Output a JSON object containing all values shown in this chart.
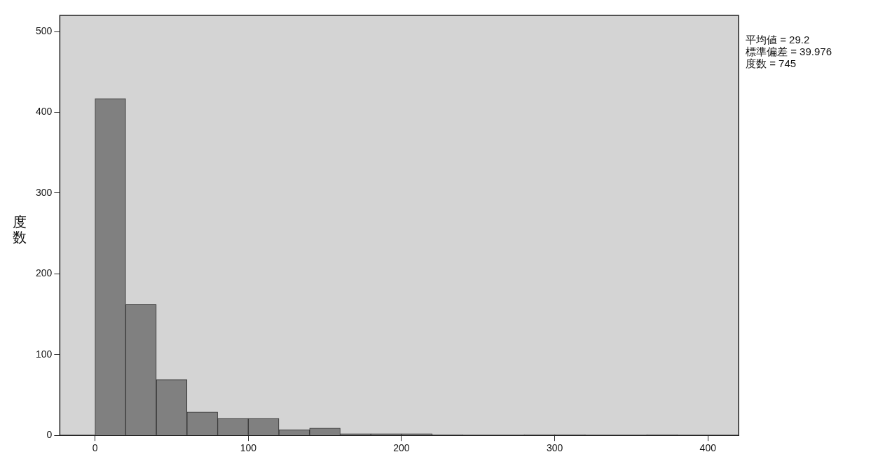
{
  "chart_data": {
    "type": "histogram",
    "ylabel": "度数",
    "bins": [
      0,
      20,
      40,
      60,
      80,
      100,
      120,
      140,
      160,
      180,
      200,
      220,
      240,
      260,
      280,
      300,
      320,
      340,
      360,
      380,
      400
    ],
    "values": [
      417,
      162,
      69,
      29,
      21,
      21,
      7,
      9,
      2,
      2,
      2,
      1,
      0,
      0,
      1,
      1,
      0,
      0,
      1,
      0
    ],
    "color": "#808080",
    "xlim": [
      -23,
      420
    ],
    "xticks": [
      0,
      100,
      200,
      300,
      400
    ],
    "ylim": [
      0,
      520
    ],
    "yticks": [
      0,
      100,
      200,
      300,
      400,
      500
    ],
    "legend": false,
    "annotations": [
      "平均値 = 29.2",
      "標準偏差 = 39.976",
      "度数 = 745"
    ]
  }
}
